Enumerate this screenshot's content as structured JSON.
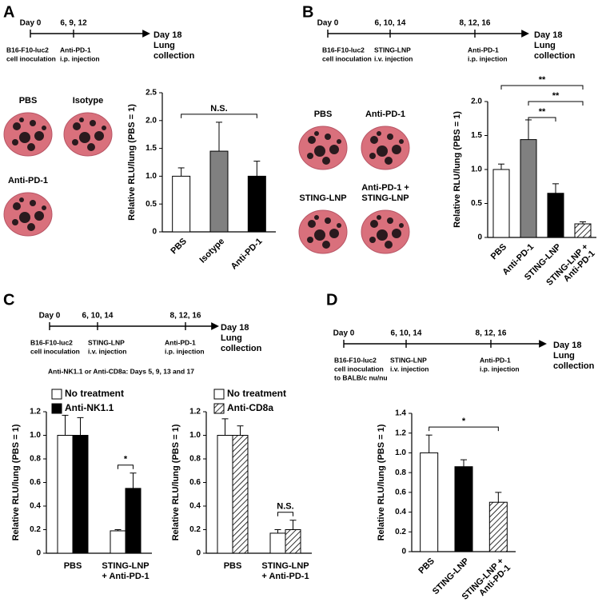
{
  "panels": [
    {
      "letter": "A",
      "timeline": {
        "days": [
          "Day 0",
          "6, 9, 12"
        ],
        "events": [
          [
            "B16-F10-luc2",
            "cell inoculation"
          ],
          [
            "Anti-PD-1",
            "i.p. injection"
          ]
        ],
        "end": [
          "Day 18",
          "Lung",
          "collection"
        ]
      },
      "photos": [
        [
          "PBS"
        ],
        [
          "Isotype"
        ],
        [
          "Anti-PD-1"
        ]
      ]
    },
    {
      "letter": "B",
      "timeline": {
        "days": [
          "Day 0",
          "6, 10, 14",
          "8, 12, 16"
        ],
        "events": [
          [
            "B16-F10-luc2",
            "cell inoculation"
          ],
          [
            "STING-LNP",
            "i.v. injection"
          ],
          [
            "Anti-PD-1",
            "i.p. injection"
          ]
        ],
        "end": [
          "Day 18",
          "Lung",
          "collection"
        ]
      },
      "photos": [
        [
          "PBS"
        ],
        [
          "Anti-PD-1"
        ],
        [
          "STING-LNP"
        ],
        [
          "Anti-PD-1 +",
          "STING-LNP"
        ]
      ]
    },
    {
      "letter": "C",
      "timeline": {
        "days": [
          "Day 0",
          "6, 10, 14",
          "8, 12, 16"
        ],
        "events": [
          [
            "B16-F10-luc2",
            "cell inoculation"
          ],
          [
            "STING-LNP",
            "i.v. injection"
          ],
          [
            "Anti-PD-1",
            "i.p. injection"
          ]
        ],
        "end": [
          "Day 18",
          "Lung",
          "collection"
        ]
      },
      "note": "Anti-NK1.1 or Anti-CD8a: Days 5, 9, 13 and 17"
    },
    {
      "letter": "D",
      "timeline": {
        "days": [
          "Day 0",
          "6, 10, 14",
          "8, 12, 16"
        ],
        "events": [
          [
            "B16-F10-luc2",
            "cell inoculation",
            "to BALB/c nu/nu"
          ],
          [
            "STING-LNP",
            "i.v. injection"
          ],
          [
            "Anti-PD-1",
            "i.p. injection"
          ]
        ],
        "end": [
          "Day 18",
          "Lung",
          "collection"
        ]
      }
    }
  ],
  "chart_data": [
    {
      "type": "bar",
      "ylabel": "Relative RLU/lung (PBS = 1)",
      "categories": [
        [
          "PBS"
        ],
        [
          "Isotype"
        ],
        [
          "Anti-PD-1"
        ]
      ],
      "series": [
        {
          "values": [
            1.0,
            1.45,
            1.0
          ],
          "errors": [
            0.15,
            0.52,
            0.27
          ],
          "colors": [
            "#ffffff",
            "#808080",
            "#000000"
          ],
          "hatched": [
            false,
            false,
            false
          ]
        }
      ],
      "ylim": [
        0,
        2.5
      ],
      "yticks": [
        0,
        0.5,
        {
          "value": 1,
          "label": "1.0"
        },
        1.5,
        {
          "value": 2,
          "label": "2.0"
        },
        2.5
      ],
      "annotations": [
        {
          "text": "N.S.",
          "between": [
            [
              0,
              0
            ],
            [
              0,
              2
            ]
          ]
        }
      ]
    },
    {
      "type": "bar",
      "ylabel": "Relative RLU/lung (PBS = 1)",
      "categories": [
        [
          "PBS"
        ],
        [
          "Anti-PD-1"
        ],
        [
          "STING-LNP"
        ],
        [
          "STING-LNP +",
          "Anti-PD-1"
        ]
      ],
      "series": [
        {
          "values": [
            1.0,
            1.44,
            0.65,
            0.2
          ],
          "errors": [
            0.08,
            0.29,
            0.14,
            0.03
          ],
          "colors": [
            "#ffffff",
            "#808080",
            "#000000",
            "#ffffff"
          ],
          "hatched": [
            false,
            false,
            false,
            true
          ]
        }
      ],
      "ylim": [
        0,
        2
      ],
      "yticks": [
        0,
        0.5,
        {
          "value": 1,
          "label": "1.0"
        },
        1.5,
        {
          "value": 2,
          "label": "2.0"
        }
      ],
      "annotations": [
        {
          "text": "**",
          "between": [
            [
              0,
              0
            ],
            [
              0,
              3
            ]
          ]
        },
        {
          "text": "**",
          "between": [
            [
              0,
              1
            ],
            [
              0,
              3
            ]
          ]
        },
        {
          "text": "**",
          "between": [
            [
              0,
              1
            ],
            [
              0,
              2
            ]
          ]
        }
      ]
    },
    {
      "type": "bar",
      "ylabel": "Relative RLU/lung (PBS = 1)",
      "categories": [
        [
          "PBS"
        ],
        [
          "STING-LNP",
          "+ Anti-PD-1"
        ]
      ],
      "series": [
        {
          "name": "No treatment",
          "values": [
            1.0,
            0.19
          ],
          "errors": [
            0.17,
            0.01
          ],
          "colors": [
            "#ffffff",
            "#ffffff"
          ],
          "hatched": [
            false,
            false
          ]
        },
        {
          "name": "Anti-NK1.1",
          "values": [
            1.0,
            0.55
          ],
          "errors": [
            0.15,
            0.13
          ],
          "colors": [
            "#000000",
            "#000000"
          ],
          "hatched": [
            false,
            false
          ]
        }
      ],
      "ylim": [
        0,
        1.2
      ],
      "yticks": [
        0,
        0.2,
        0.4,
        0.6,
        0.8,
        {
          "value": 1,
          "label": "1.0"
        },
        1.2
      ],
      "annotations": [
        {
          "text": "*",
          "between": [
            [
              0,
              1
            ],
            [
              1,
              1
            ]
          ]
        }
      ]
    },
    {
      "type": "bar",
      "ylabel": "Relative RLU/lung (PBS = 1)",
      "categories": [
        [
          "PBS"
        ],
        [
          "STING-LNP",
          "+ Anti-PD-1"
        ]
      ],
      "series": [
        {
          "name": "No treatment",
          "values": [
            1.0,
            0.17
          ],
          "errors": [
            0.14,
            0.03
          ],
          "colors": [
            "#ffffff",
            "#ffffff"
          ],
          "hatched": [
            false,
            false
          ]
        },
        {
          "name": "Anti-CD8a",
          "values": [
            1.0,
            0.2
          ],
          "errors": [
            0.08,
            0.08
          ],
          "colors": [
            "#ffffff",
            "#ffffff"
          ],
          "hatched": [
            true,
            true
          ]
        }
      ],
      "ylim": [
        0,
        1.2
      ],
      "yticks": [
        0,
        0.2,
        0.4,
        0.6,
        0.8,
        {
          "value": 1,
          "label": "1.0"
        },
        1.2
      ],
      "annotations": [
        {
          "text": "N.S.",
          "between": [
            [
              0,
              1
            ],
            [
              1,
              1
            ]
          ]
        }
      ]
    },
    {
      "type": "bar",
      "ylabel": "Relative RLU/lung (PBS = 1)",
      "categories": [
        [
          "PBS"
        ],
        [
          "STING-LNP"
        ],
        [
          "STING-LNP +",
          "Anti-PD-1"
        ]
      ],
      "series": [
        {
          "values": [
            1.0,
            0.86,
            0.5
          ],
          "errors": [
            0.18,
            0.07,
            0.1
          ],
          "colors": [
            "#ffffff",
            "#000000",
            "#ffffff"
          ],
          "hatched": [
            false,
            false,
            true
          ]
        }
      ],
      "ylim": [
        0,
        1.4
      ],
      "yticks": [
        0,
        0.2,
        0.4,
        0.6,
        0.8,
        {
          "value": 1,
          "label": "1.0"
        },
        1.2,
        1.4
      ],
      "annotations": [
        {
          "text": "*",
          "between": [
            [
              0,
              0
            ],
            [
              0,
              2
            ]
          ]
        }
      ]
    }
  ]
}
